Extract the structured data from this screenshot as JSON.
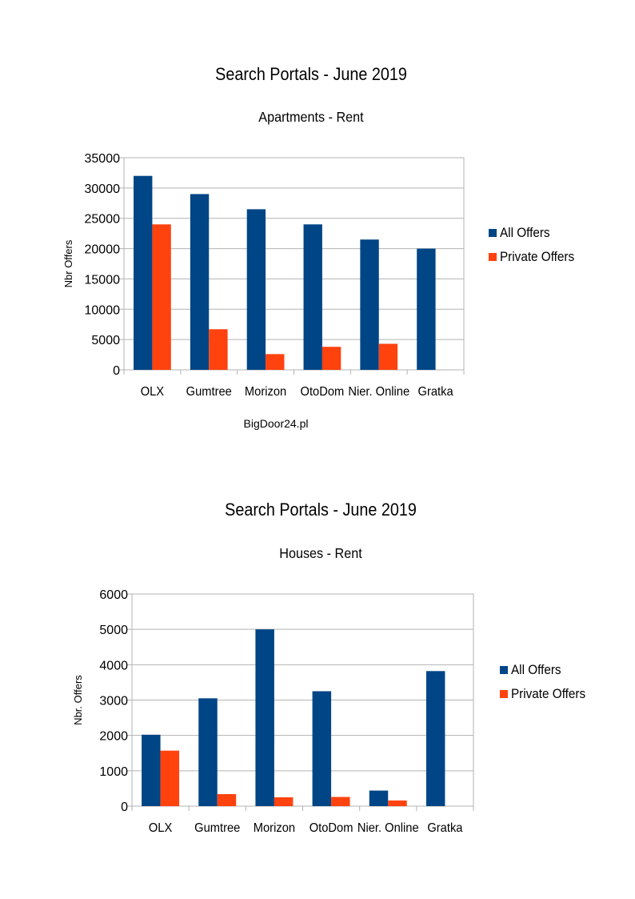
{
  "chart_data": [
    {
      "type": "bar",
      "title": "Search Portals - June 2019",
      "subtitle": "Apartments - Rent",
      "xlabel": "",
      "ylabel": "Nbr Offers",
      "ylim": [
        0,
        35000
      ],
      "yticks": [
        0,
        5000,
        10000,
        15000,
        20000,
        25000,
        30000,
        35000
      ],
      "grid": true,
      "legend_position": "right",
      "categories": [
        "OLX",
        "Gumtree",
        "Morizon",
        "OtoDom",
        "Nier. Online",
        "Gratka"
      ],
      "series": [
        {
          "name": "All Offers",
          "color": "#004586",
          "values": [
            32000,
            29000,
            26500,
            24000,
            21500,
            20000
          ]
        },
        {
          "name": "Private Offers",
          "color": "#ff420e",
          "values": [
            24000,
            6700,
            2600,
            3800,
            4300,
            0
          ]
        }
      ],
      "footnote": "BigDoor24.pl"
    },
    {
      "type": "bar",
      "title": "Search Portals - June 2019",
      "subtitle": "Houses - Rent",
      "xlabel": "",
      "ylabel": "Nbr. Offers",
      "ylim": [
        0,
        6000
      ],
      "yticks": [
        0,
        1000,
        2000,
        3000,
        4000,
        5000,
        6000
      ],
      "grid": true,
      "legend_position": "right",
      "categories": [
        "OLX",
        "Gumtree",
        "Morizon",
        "OtoDom",
        "Nier. Online",
        "Gratka"
      ],
      "series": [
        {
          "name": "All Offers",
          "color": "#004586",
          "values": [
            2020,
            3050,
            5000,
            3250,
            440,
            3820
          ]
        },
        {
          "name": "Private Offers",
          "color": "#ff420e",
          "values": [
            1570,
            340,
            250,
            260,
            160,
            0
          ]
        }
      ],
      "footnote": ""
    }
  ]
}
